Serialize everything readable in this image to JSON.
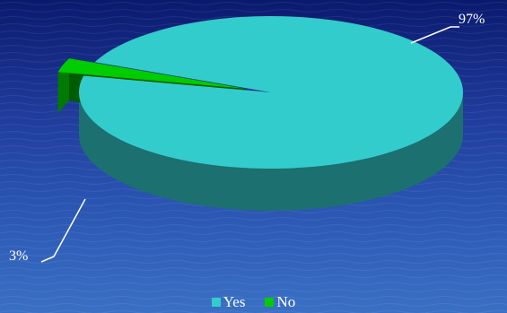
{
  "chart_data": {
    "type": "pie",
    "style": "3d",
    "title": "",
    "categories": [
      "Yes",
      "No"
    ],
    "values": [
      97,
      3
    ],
    "unit": "%",
    "data_labels": [
      "97%",
      "3%"
    ],
    "colors": [
      "#33CCCC",
      "#00CC00"
    ],
    "legend": {
      "position": "bottom",
      "entries": [
        "Yes",
        "No"
      ]
    },
    "background": "ocean-blue"
  }
}
